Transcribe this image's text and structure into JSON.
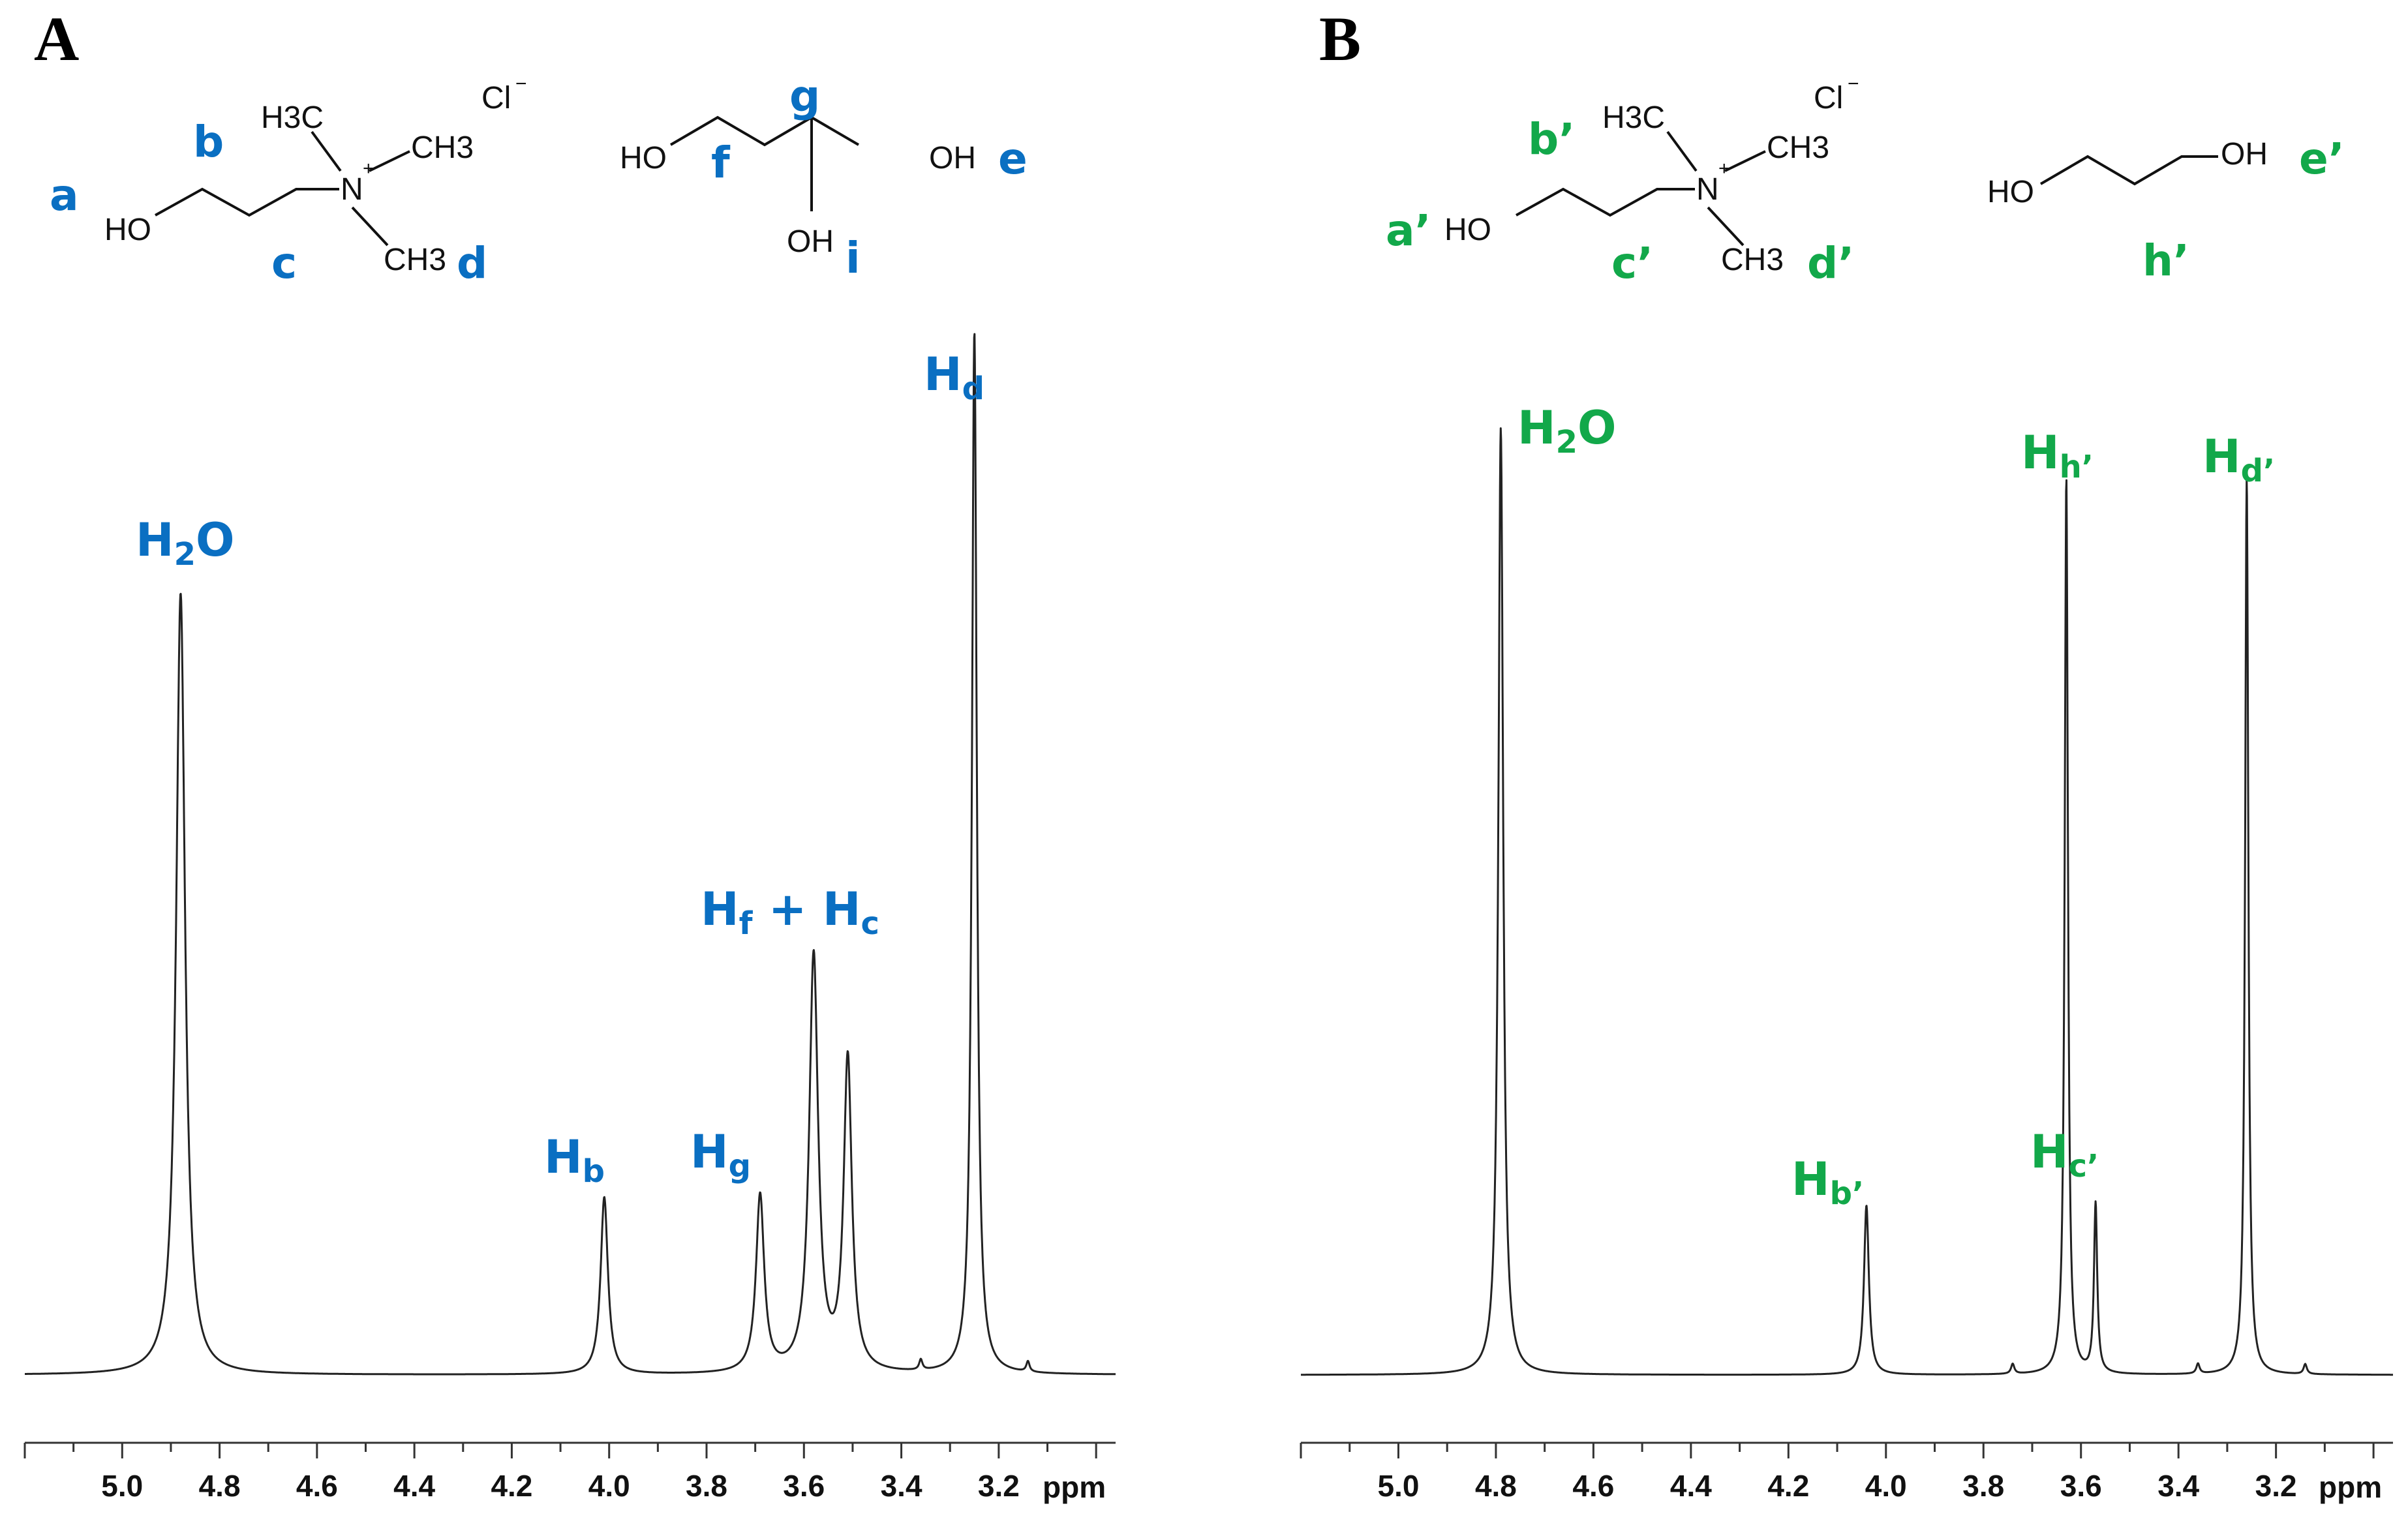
{
  "colors": {
    "panel_a": "#0a6fc2",
    "panel_b": "#12a84a",
    "trace": "#222222",
    "axis": "#333333"
  },
  "chart_data": [
    {
      "type": "line",
      "panel": "A",
      "xlabel": "ppm",
      "x_reversed": true,
      "xlim": [
        5.2,
        2.96
      ],
      "x_ticks": [
        "5.0",
        "4.8",
        "4.6",
        "4.4",
        "4.2",
        "4.0",
        "3.8",
        "3.6",
        "3.4",
        "3.2"
      ],
      "ylabel": "",
      "molecules": {
        "ammonium": {
          "ho": "HO",
          "n": "N",
          "plus": "+",
          "me1": "H3C",
          "me2": "CH3",
          "me3": "CH3",
          "cl": "Cl",
          "cl_charge": "−"
        },
        "second": {
          "oh_left": "HO",
          "oh_right": "OH",
          "oh_bottom": "OH"
        }
      },
      "site_labels": {
        "a": "a",
        "b": "b",
        "c": "c",
        "d": "d",
        "e": "e",
        "f": "f",
        "g": "g",
        "i": "i"
      },
      "peaks": [
        {
          "label": "H2O",
          "ppm": 4.88,
          "height": 0.75,
          "width": 0.011
        },
        {
          "label": "Hb",
          "ppm": 4.01,
          "height": 0.17,
          "width": 0.009
        },
        {
          "label": "Hg",
          "ppm": 3.69,
          "height": 0.17,
          "width": 0.01
        },
        {
          "label": "Hf + Hc",
          "ppm": 3.58,
          "height": 0.4,
          "width": 0.011
        },
        {
          "label": "",
          "ppm": 3.51,
          "height": 0.3,
          "width": 0.01
        },
        {
          "label": "Hd",
          "ppm": 3.25,
          "height": 1.0,
          "width": 0.006
        }
      ],
      "minor_peaks": [
        {
          "ppm": 3.36,
          "height": 0.01
        },
        {
          "ppm": 3.14,
          "height": 0.01
        }
      ]
    },
    {
      "type": "line",
      "panel": "B",
      "xlabel": "ppm",
      "x_reversed": true,
      "xlim": [
        5.2,
        2.96
      ],
      "x_ticks": [
        "5.0",
        "4.8",
        "4.6",
        "4.4",
        "4.2",
        "4.0",
        "3.8",
        "3.6",
        "3.4",
        "3.2"
      ],
      "ylabel": "",
      "molecules": {
        "ammonium": {
          "ho": "HO",
          "n": "N",
          "plus": "+",
          "me1": "H3C",
          "me2": "CH3",
          "me3": "CH3",
          "cl": "Cl",
          "cl_charge": "−"
        },
        "second": {
          "oh_left": "HO",
          "oh_right": "OH"
        }
      },
      "site_labels": {
        "a": "a’",
        "b": "b’",
        "c": "c’",
        "d": "d’",
        "e": "e’",
        "h": "h’"
      },
      "peaks": [
        {
          "label": "H2O",
          "ppm": 4.79,
          "height": 0.95,
          "width": 0.006
        },
        {
          "label": "Hb’",
          "ppm": 4.04,
          "height": 0.17,
          "width": 0.006
        },
        {
          "label": "Hh’",
          "ppm": 3.63,
          "height": 0.9,
          "width": 0.004
        },
        {
          "label": "Hc’",
          "ppm": 3.57,
          "height": 0.17,
          "width": 0.004
        },
        {
          "label": "Hd’",
          "ppm": 3.26,
          "height": 0.9,
          "width": 0.004
        }
      ],
      "minor_peaks": [
        {
          "ppm": 3.74,
          "height": 0.01
        },
        {
          "ppm": 3.36,
          "height": 0.01
        },
        {
          "ppm": 3.14,
          "height": 0.01
        }
      ]
    }
  ]
}
